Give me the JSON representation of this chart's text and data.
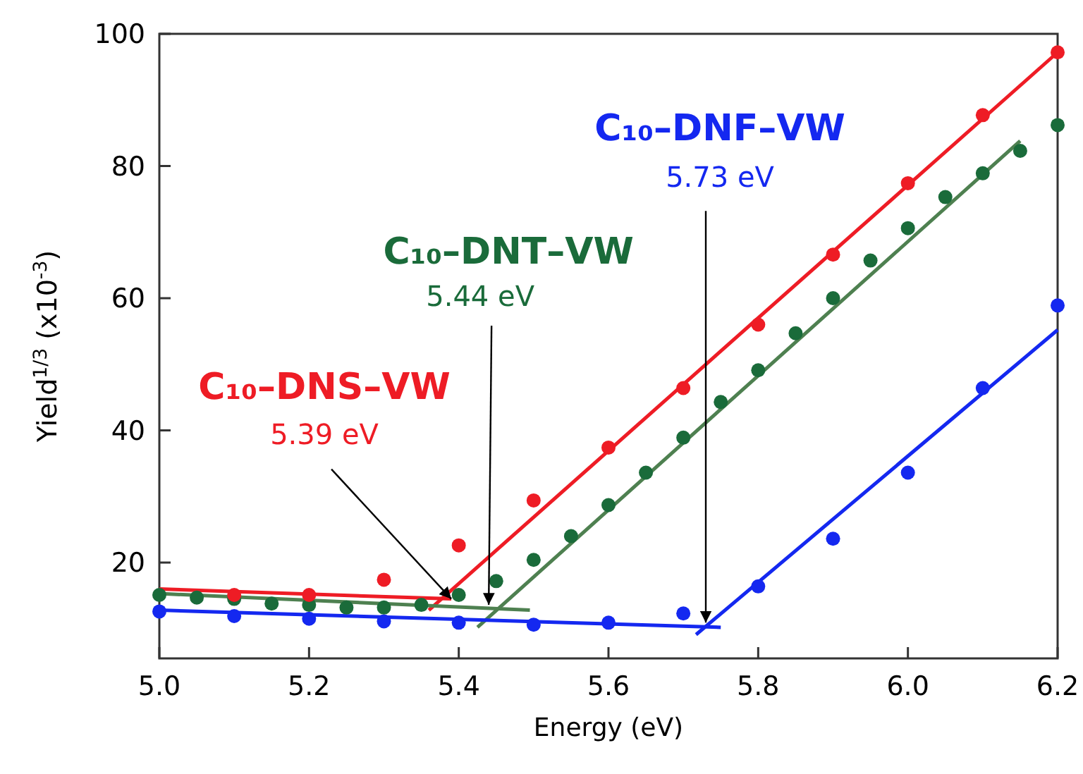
{
  "chart_data": {
    "type": "scatter",
    "xlabel": "Energy (eV)",
    "ylabel": "Yield$^{1/3}$ (x10$^{-3}$)",
    "xlim": [
      5.0,
      6.2
    ],
    "ylim": [
      5.5,
      100
    ],
    "xticks": [
      {
        "value": 5.0,
        "label": "5.0"
      },
      {
        "value": 5.2,
        "label": "5.2"
      },
      {
        "value": 5.4,
        "label": "5.4"
      },
      {
        "value": 5.6,
        "label": "5.6"
      },
      {
        "value": 5.8,
        "label": "5.8"
      },
      {
        "value": 6.0,
        "label": "6.0"
      },
      {
        "value": 6.2,
        "label": "6.2"
      }
    ],
    "yticks": [
      20,
      40,
      60,
      80,
      100
    ],
    "grid": false,
    "marker": "circle",
    "series": [
      {
        "name": "C₁₀–DNS–VW",
        "color": "#ee1c25",
        "x": [
          5.1,
          5.2,
          5.3,
          5.4,
          5.5,
          5.6,
          5.7,
          5.8,
          5.9,
          6.0,
          6.1,
          6.2
        ],
        "values": [
          15.1,
          15.1,
          17.4,
          22.6,
          29.4,
          37.4,
          46.4,
          56.0,
          66.6,
          77.4,
          87.7,
          97.2
        ]
      },
      {
        "name": "C₁₀–DNT–VW",
        "color": "#1a6b3a",
        "x": [
          5.0,
          5.05,
          5.1,
          5.15,
          5.2,
          5.25,
          5.3,
          5.35,
          5.4,
          5.45,
          5.5,
          5.55,
          5.6,
          5.65,
          5.7,
          5.75,
          5.8,
          5.85,
          5.9,
          5.95,
          6.0,
          6.05,
          6.1,
          6.15,
          6.2
        ],
        "values": [
          15.1,
          14.7,
          14.5,
          13.8,
          13.6,
          13.2,
          13.2,
          13.6,
          15.1,
          17.2,
          20.4,
          24.0,
          28.7,
          33.6,
          38.9,
          44.3,
          49.1,
          54.7,
          60.0,
          65.7,
          70.6,
          75.3,
          78.9,
          82.3,
          86.2
        ]
      },
      {
        "name": "C₁₀–DNF–VW",
        "color": "#1428f0",
        "x": [
          5.0,
          5.1,
          5.2,
          5.3,
          5.4,
          5.5,
          5.6,
          5.7,
          5.8,
          5.9,
          6.0,
          6.1,
          6.2
        ],
        "values": [
          12.6,
          11.9,
          11.5,
          11.1,
          10.9,
          10.6,
          10.9,
          12.3,
          16.4,
          23.6,
          33.6,
          46.4,
          58.9
        ]
      },
      {
        "type": "line",
        "marker": "none",
        "color": "#ee1c25",
        "x": [
          5.0,
          5.39
        ],
        "values": [
          16.0,
          14.5
        ]
      },
      {
        "type": "line",
        "marker": "none",
        "color": "#ee1c25",
        "x": [
          5.36,
          6.2
        ],
        "values": [
          12.8,
          97.2
        ]
      },
      {
        "type": "line",
        "marker": "none",
        "color": "#4e8050",
        "x": [
          5.0,
          5.495
        ],
        "values": [
          15.3,
          12.8
        ]
      },
      {
        "type": "line",
        "marker": "none",
        "color": "#4e8050",
        "x": [
          5.425,
          6.15
        ],
        "values": [
          10.2,
          83.8
        ]
      },
      {
        "type": "line",
        "marker": "none",
        "color": "#1428f0",
        "x": [
          5.0,
          5.75
        ],
        "values": [
          12.8,
          10.2
        ]
      },
      {
        "type": "line",
        "marker": "none",
        "color": "#1428f0",
        "x": [
          5.717,
          6.2
        ],
        "values": [
          9.1,
          55.2
        ]
      }
    ],
    "annotations": [
      {
        "text": "5.39 eV",
        "x": 5.39,
        "y": 14.5
      },
      {
        "text": "5.44 eV",
        "x": 5.44,
        "y": 13.6
      },
      {
        "text": "5.73 eV",
        "x": 5.73,
        "y": 10.9
      }
    ]
  }
}
